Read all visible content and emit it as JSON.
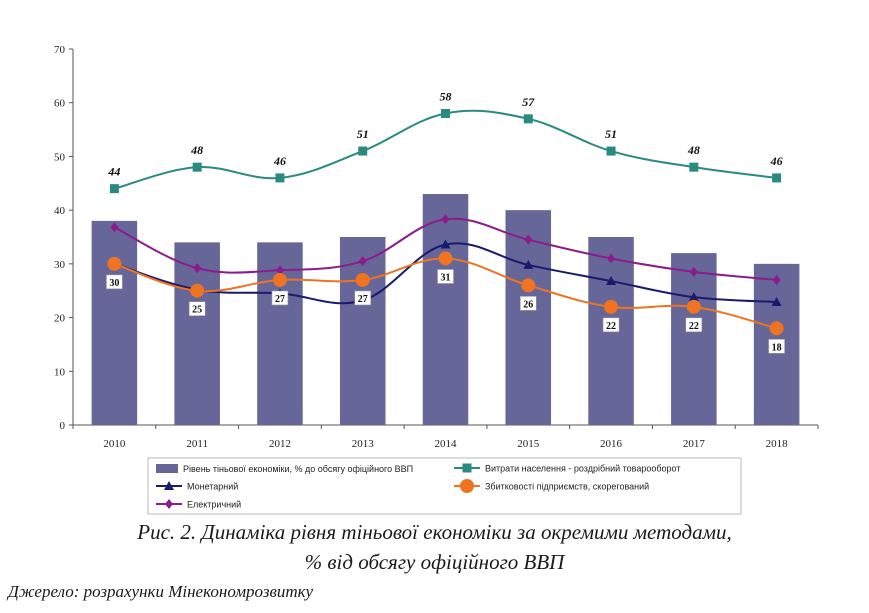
{
  "chart_data": {
    "type": "bar",
    "categories": [
      "2010",
      "2011",
      "2012",
      "2013",
      "2014",
      "2015",
      "2016",
      "2017",
      "2018"
    ],
    "ylim": [
      0,
      70
    ],
    "yticks": [
      "0",
      "10",
      "20",
      "30",
      "40",
      "50",
      "60",
      "70"
    ],
    "bar_series": {
      "name": "Рівень тіньової економіки, % до обсягу офіційного ВВП",
      "values": [
        38,
        34,
        34,
        35,
        43,
        40,
        35,
        32,
        30
      ],
      "color": "#666699"
    },
    "line_series": [
      {
        "name": "Витрати населення - роздрібний товарооборот",
        "values": [
          44,
          48,
          46,
          51,
          58,
          57,
          51,
          48,
          46
        ],
        "labels": [
          "44",
          "48",
          "46",
          "51",
          "58",
          "57",
          "51",
          "48",
          "46"
        ],
        "color": "#2a8a80",
        "marker": "square"
      },
      {
        "name": "Монетарний",
        "values": [
          30,
          25.2,
          24.5,
          23.2,
          33.6,
          29.8,
          26.8,
          23.8,
          22.9
        ],
        "color": "#1a1a6e",
        "marker": "triangle"
      },
      {
        "name": "Збитковості підприємств, скорегований",
        "values": [
          30,
          25,
          27,
          27,
          31,
          26,
          22,
          22,
          18
        ],
        "labels": [
          "30",
          "25",
          "27",
          "27",
          "31",
          "26",
          "22",
          "22",
          "18"
        ],
        "color": "#ee7422",
        "marker": "circle"
      },
      {
        "name": "Електричний",
        "values": [
          36.8,
          29.2,
          28.8,
          30.5,
          38.3,
          34.5,
          31,
          28.5,
          27
        ],
        "color": "#8b1c8b",
        "marker": "diamond"
      }
    ]
  },
  "caption": {
    "line1": "Рис. 2. Динаміка рівня тіньової економіки за окремими методами,",
    "line2": "% від обсягу офіційного ВВП"
  },
  "source": "Джерело: розрахунки Мінекономрозвитку"
}
